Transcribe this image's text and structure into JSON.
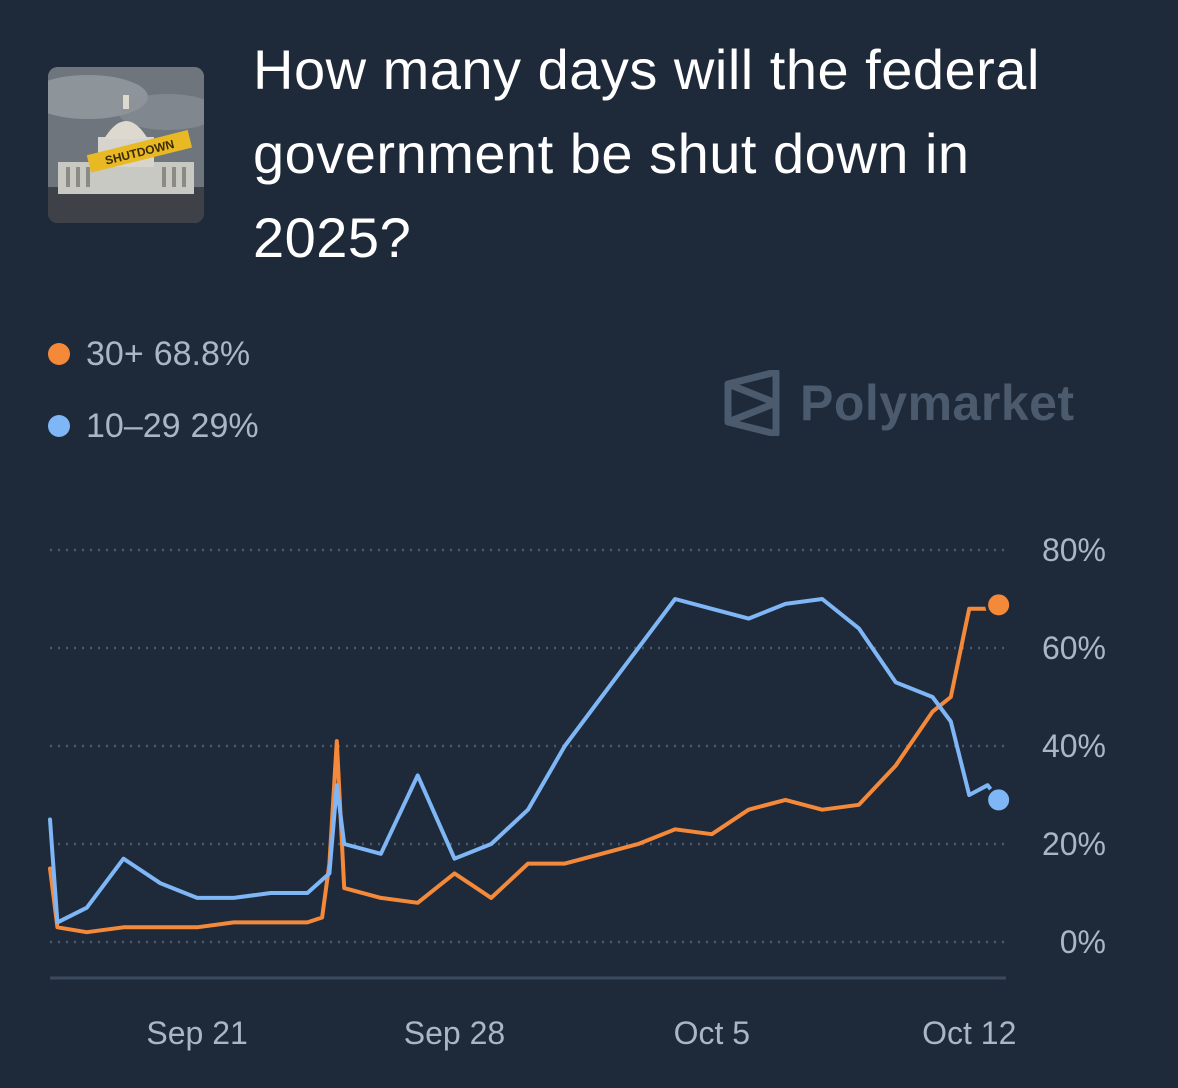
{
  "market": {
    "title": "How many days will the federal government be shut down in 2025?",
    "thumbnail_icon": "capitol-shutdown-image",
    "thumbnail_text": "SHUTDOWN"
  },
  "legend": [
    {
      "name": "30+",
      "value_label": "68.8%",
      "color": "#f5893a"
    },
    {
      "name": "10–29",
      "value_label": "29%",
      "color": "#7fb6f6"
    }
  ],
  "watermark": {
    "icon": "polymarket-logo-icon",
    "text": "Polymarket"
  },
  "chart_data": {
    "type": "line",
    "y_axis": {
      "ticks": [
        "0%",
        "20%",
        "40%",
        "60%",
        "80%"
      ],
      "range": [
        0,
        80
      ],
      "grid": "dotted"
    },
    "x_axis": {
      "ticks": [
        "Sep 21",
        "Sep 28",
        "Oct 5",
        "Oct 12"
      ]
    },
    "x_range": [
      "Sep 17",
      "Oct 13"
    ],
    "series": [
      {
        "name": "30+",
        "color": "#f5893a",
        "points": [
          [
            "Sep 17",
            15
          ],
          [
            "Sep 17.2",
            3
          ],
          [
            "Sep 18",
            2
          ],
          [
            "Sep 19",
            3
          ],
          [
            "Sep 20",
            3
          ],
          [
            "Sep 21",
            3
          ],
          [
            "Sep 22",
            4
          ],
          [
            "Sep 23",
            4
          ],
          [
            "Sep 24",
            4
          ],
          [
            "Sep 24.4",
            5
          ],
          [
            "Sep 24.6",
            16
          ],
          [
            "Sep 24.8",
            41
          ],
          [
            "Sep 25",
            11
          ],
          [
            "Sep 26",
            9
          ],
          [
            "Sep 27",
            8
          ],
          [
            "Sep 28",
            14
          ],
          [
            "Sep 29",
            9
          ],
          [
            "Sep 30",
            16
          ],
          [
            "Oct 1",
            16
          ],
          [
            "Oct 2",
            18
          ],
          [
            "Oct 3",
            20
          ],
          [
            "Oct 4",
            23
          ],
          [
            "Oct 5",
            22
          ],
          [
            "Oct 6",
            27
          ],
          [
            "Oct 7",
            29
          ],
          [
            "Oct 8",
            27
          ],
          [
            "Oct 9",
            28
          ],
          [
            "Oct 10",
            36
          ],
          [
            "Oct 11",
            47
          ],
          [
            "Oct 11.5",
            50
          ],
          [
            "Oct 12",
            68
          ],
          [
            "Oct 12.5",
            68
          ],
          [
            "Oct 12.8",
            68.8
          ]
        ]
      },
      {
        "name": "10–29",
        "color": "#7fb6f6",
        "points": [
          [
            "Sep 17",
            25
          ],
          [
            "Sep 17.2",
            4
          ],
          [
            "Sep 18",
            7
          ],
          [
            "Sep 19",
            17
          ],
          [
            "Sep 20",
            12
          ],
          [
            "Sep 21",
            9
          ],
          [
            "Sep 22",
            9
          ],
          [
            "Sep 23",
            10
          ],
          [
            "Sep 24",
            10
          ],
          [
            "Sep 24.6",
            14
          ],
          [
            "Sep 24.8",
            32
          ],
          [
            "Sep 25",
            20
          ],
          [
            "Sep 26",
            18
          ],
          [
            "Sep 27",
            34
          ],
          [
            "Sep 28",
            17
          ],
          [
            "Sep 29",
            20
          ],
          [
            "Sep 30",
            27
          ],
          [
            "Oct 1",
            40
          ],
          [
            "Oct 2",
            50
          ],
          [
            "Oct 3",
            60
          ],
          [
            "Oct 4",
            70
          ],
          [
            "Oct 5",
            68
          ],
          [
            "Oct 6",
            66
          ],
          [
            "Oct 7",
            69
          ],
          [
            "Oct 8",
            70
          ],
          [
            "Oct 9",
            64
          ],
          [
            "Oct 10",
            53
          ],
          [
            "Oct 11",
            50
          ],
          [
            "Oct 11.5",
            45
          ],
          [
            "Oct 12",
            30
          ],
          [
            "Oct 12.5",
            32
          ],
          [
            "Oct 12.8",
            29
          ]
        ]
      }
    ]
  }
}
